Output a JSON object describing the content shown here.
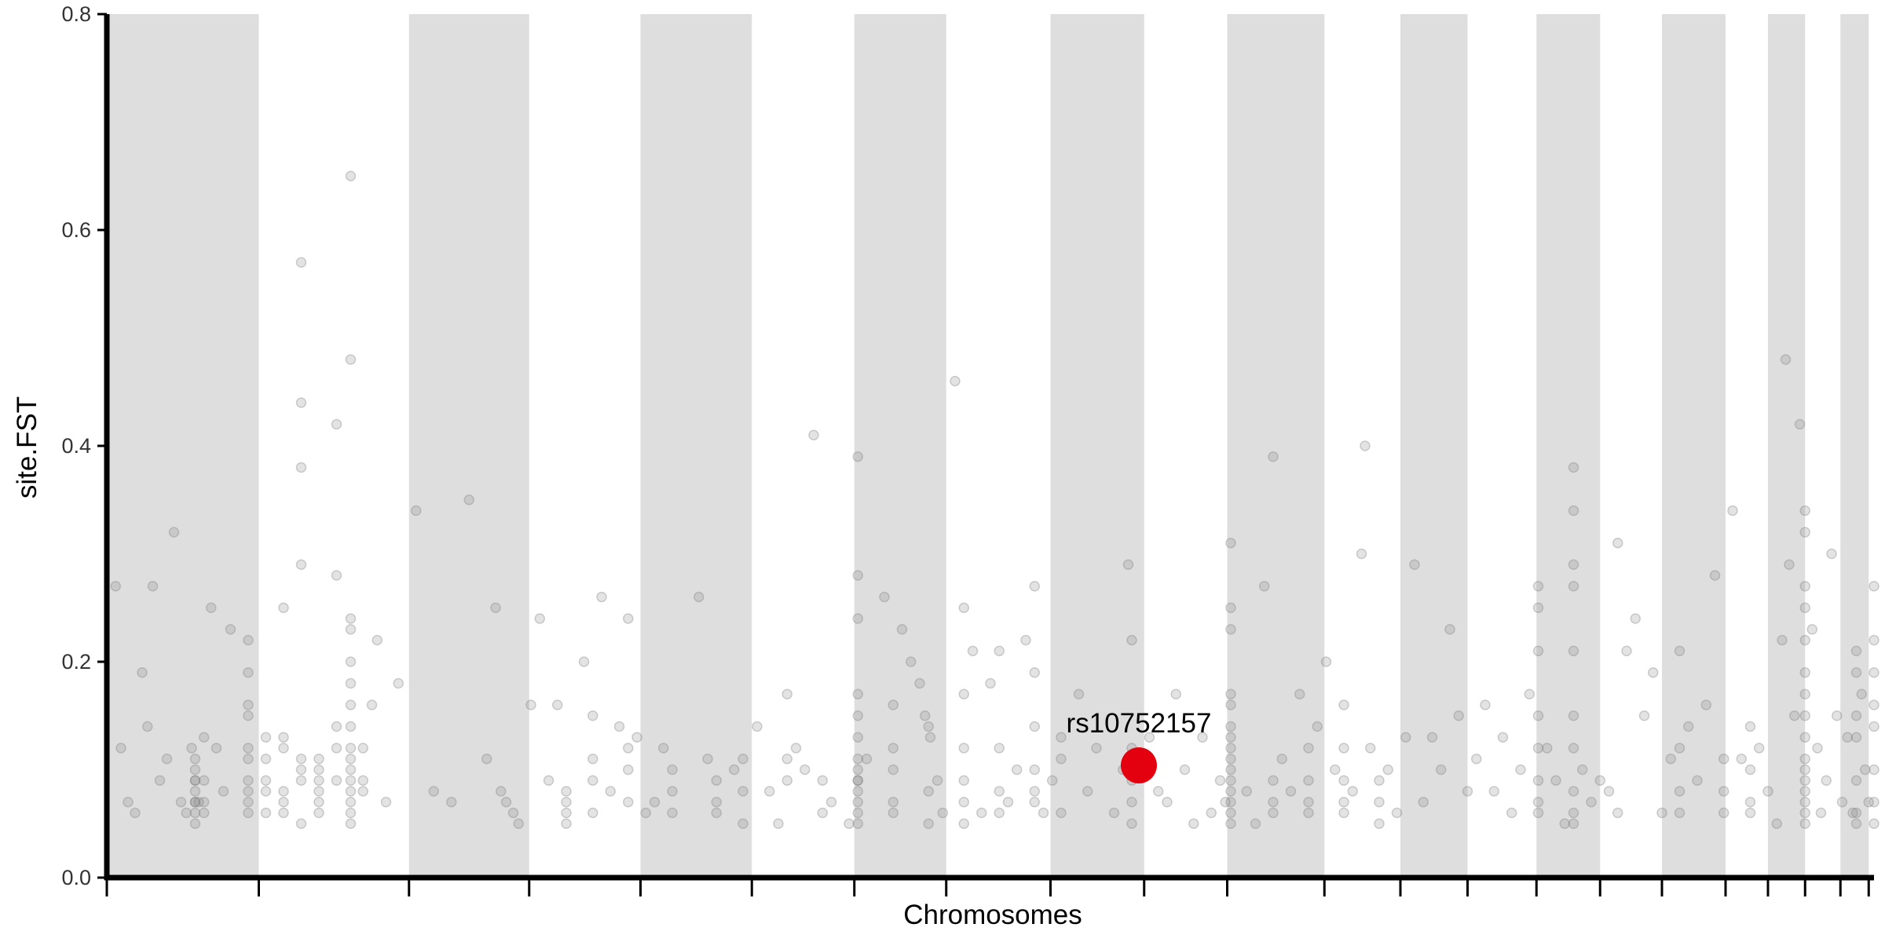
{
  "chart_data": {
    "type": "scatter",
    "xlabel": "Chromosomes",
    "ylabel": "site.FST",
    "ylim": [
      0,
      0.8
    ],
    "yticks": [
      "0.0",
      "0.2",
      "0.4",
      "0.6",
      "0.8"
    ],
    "xlim": [
      0,
      100
    ],
    "chromosome_boundaries": [
      0,
      8.6,
      17.1,
      23.9,
      30.2,
      36.5,
      42.3,
      47.5,
      53.4,
      58.7,
      63.4,
      68.9,
      73.2,
      77.0,
      80.9,
      84.5,
      88.0,
      91.6,
      94.0,
      96.1,
      98.1,
      99.7
    ],
    "colors": {
      "band": "#dedede",
      "point": "#7f7f7f",
      "highlight": "#e3000f",
      "axis": "#000000"
    },
    "highlight": {
      "label": "rs10752157",
      "x": 58.4,
      "y": 0.104
    },
    "points": [
      [
        0.5,
        0.27
      ],
      [
        0.8,
        0.12
      ],
      [
        1.2,
        0.07
      ],
      [
        1.6,
        0.06
      ],
      [
        2.0,
        0.19
      ],
      [
        2.3,
        0.14
      ],
      [
        2.6,
        0.27
      ],
      [
        3.0,
        0.09
      ],
      [
        3.4,
        0.11
      ],
      [
        3.8,
        0.32
      ],
      [
        4.2,
        0.07
      ],
      [
        4.5,
        0.06
      ],
      [
        4.8,
        0.12
      ],
      [
        5.0,
        0.09
      ],
      [
        5.2,
        0.07
      ],
      [
        5.5,
        0.06
      ],
      [
        5.9,
        0.25
      ],
      [
        6.2,
        0.12
      ],
      [
        6.6,
        0.08
      ],
      [
        7.0,
        0.23
      ],
      [
        5.0,
        0.11
      ],
      [
        5.0,
        0.08
      ],
      [
        5.0,
        0.06
      ],
      [
        5.0,
        0.07
      ],
      [
        5.0,
        0.09
      ],
      [
        5.0,
        0.05
      ],
      [
        5.0,
        0.1
      ],
      [
        5.0,
        0.07
      ],
      [
        5.5,
        0.13
      ],
      [
        5.5,
        0.07
      ],
      [
        5.5,
        0.09
      ],
      [
        8.0,
        0.09
      ],
      [
        8.0,
        0.07
      ],
      [
        8.0,
        0.06
      ],
      [
        8.0,
        0.12
      ],
      [
        8.0,
        0.15
      ],
      [
        8.0,
        0.19
      ],
      [
        8.0,
        0.22
      ],
      [
        8.0,
        0.11
      ],
      [
        8.0,
        0.08
      ],
      [
        8.0,
        0.16
      ],
      [
        9.0,
        0.06
      ],
      [
        9.0,
        0.09
      ],
      [
        9.0,
        0.13
      ],
      [
        9.0,
        0.11
      ],
      [
        9.0,
        0.08
      ],
      [
        10.0,
        0.25
      ],
      [
        10.0,
        0.13
      ],
      [
        10.0,
        0.12
      ],
      [
        10.0,
        0.08
      ],
      [
        10.0,
        0.07
      ],
      [
        10.0,
        0.06
      ],
      [
        11.0,
        0.1
      ],
      [
        11.0,
        0.09
      ],
      [
        11.0,
        0.11
      ],
      [
        11.0,
        0.44
      ],
      [
        11.0,
        0.38
      ],
      [
        11.0,
        0.29
      ],
      [
        11.0,
        0.05
      ],
      [
        11.0,
        0.57
      ],
      [
        12.0,
        0.1
      ],
      [
        12.0,
        0.07
      ],
      [
        12.0,
        0.09
      ],
      [
        12.0,
        0.06
      ],
      [
        12.0,
        0.11
      ],
      [
        12.0,
        0.08
      ],
      [
        13.0,
        0.12
      ],
      [
        13.0,
        0.42
      ],
      [
        13.0,
        0.28
      ],
      [
        13.0,
        0.14
      ],
      [
        13.0,
        0.09
      ],
      [
        13.8,
        0.65
      ],
      [
        13.8,
        0.48
      ],
      [
        13.8,
        0.24
      ],
      [
        13.8,
        0.23
      ],
      [
        13.8,
        0.2
      ],
      [
        13.8,
        0.18
      ],
      [
        13.8,
        0.16
      ],
      [
        13.8,
        0.14
      ],
      [
        13.8,
        0.12
      ],
      [
        13.8,
        0.1
      ],
      [
        13.8,
        0.09
      ],
      [
        13.8,
        0.08
      ],
      [
        13.8,
        0.07
      ],
      [
        13.8,
        0.06
      ],
      [
        13.8,
        0.11
      ],
      [
        13.8,
        0.05
      ],
      [
        14.5,
        0.09
      ],
      [
        14.5,
        0.12
      ],
      [
        14.5,
        0.08
      ],
      [
        15.0,
        0.16
      ],
      [
        15.3,
        0.22
      ],
      [
        15.8,
        0.07
      ],
      [
        16.5,
        0.18
      ],
      [
        17.5,
        0.34
      ],
      [
        18.5,
        0.08
      ],
      [
        19.5,
        0.07
      ],
      [
        20.5,
        0.35
      ],
      [
        21.5,
        0.11
      ],
      [
        22.0,
        0.25
      ],
      [
        22.3,
        0.08
      ],
      [
        22.6,
        0.07
      ],
      [
        23.0,
        0.06
      ],
      [
        23.3,
        0.05
      ],
      [
        24.0,
        0.16
      ],
      [
        24.5,
        0.24
      ],
      [
        25.0,
        0.09
      ],
      [
        25.5,
        0.16
      ],
      [
        26.0,
        0.06
      ],
      [
        27.0,
        0.2
      ],
      [
        27.5,
        0.15
      ],
      [
        28.0,
        0.26
      ],
      [
        28.5,
        0.08
      ],
      [
        29.0,
        0.14
      ],
      [
        29.5,
        0.24
      ],
      [
        30.0,
        0.13
      ],
      [
        30.5,
        0.06
      ],
      [
        31.0,
        0.07
      ],
      [
        31.5,
        0.12
      ],
      [
        32.0,
        0.06
      ],
      [
        33.5,
        0.26
      ],
      [
        34.0,
        0.11
      ],
      [
        34.5,
        0.06
      ],
      [
        35.5,
        0.1
      ],
      [
        36.0,
        0.05
      ],
      [
        36.8,
        0.14
      ],
      [
        37.5,
        0.08
      ],
      [
        38.0,
        0.05
      ],
      [
        38.5,
        0.17
      ],
      [
        39.0,
        0.12
      ],
      [
        39.5,
        0.1
      ],
      [
        40.0,
        0.41
      ],
      [
        41.0,
        0.07
      ],
      [
        42.0,
        0.05
      ],
      [
        42.5,
        0.09
      ],
      [
        43.0,
        0.11
      ],
      [
        44.0,
        0.26
      ],
      [
        44.5,
        0.16
      ],
      [
        45.0,
        0.23
      ],
      [
        45.5,
        0.2
      ],
      [
        46.0,
        0.18
      ],
      [
        46.3,
        0.15
      ],
      [
        46.6,
        0.13
      ],
      [
        47.0,
        0.09
      ],
      [
        47.3,
        0.06
      ],
      [
        26.0,
        0.07
      ],
      [
        26.0,
        0.05
      ],
      [
        26.0,
        0.08
      ],
      [
        27.5,
        0.09
      ],
      [
        27.5,
        0.11
      ],
      [
        27.5,
        0.06
      ],
      [
        29.5,
        0.1
      ],
      [
        29.5,
        0.07
      ],
      [
        29.5,
        0.12
      ],
      [
        32.0,
        0.08
      ],
      [
        32.0,
        0.1
      ],
      [
        34.5,
        0.07
      ],
      [
        34.5,
        0.09
      ],
      [
        36.0,
        0.11
      ],
      [
        36.0,
        0.08
      ],
      [
        38.5,
        0.09
      ],
      [
        38.5,
        0.11
      ],
      [
        40.5,
        0.06
      ],
      [
        40.5,
        0.09
      ],
      [
        42.5,
        0.06
      ],
      [
        42.5,
        0.07
      ],
      [
        42.5,
        0.08
      ],
      [
        42.5,
        0.1
      ],
      [
        42.5,
        0.13
      ],
      [
        42.5,
        0.15
      ],
      [
        42.5,
        0.17
      ],
      [
        42.5,
        0.28
      ],
      [
        42.5,
        0.24
      ],
      [
        42.5,
        0.39
      ],
      [
        42.5,
        0.05
      ],
      [
        42.5,
        0.11
      ],
      [
        42.5,
        0.09
      ],
      [
        44.5,
        0.07
      ],
      [
        44.5,
        0.1
      ],
      [
        44.5,
        0.12
      ],
      [
        44.5,
        0.06
      ],
      [
        46.5,
        0.05
      ],
      [
        46.5,
        0.08
      ],
      [
        46.5,
        0.14
      ],
      [
        48.0,
        0.46
      ],
      [
        48.5,
        0.09
      ],
      [
        49.0,
        0.21
      ],
      [
        49.5,
        0.06
      ],
      [
        50.0,
        0.18
      ],
      [
        50.5,
        0.12
      ],
      [
        51.0,
        0.07
      ],
      [
        51.5,
        0.1
      ],
      [
        52.0,
        0.22
      ],
      [
        52.5,
        0.08
      ],
      [
        53.0,
        0.06
      ],
      [
        53.5,
        0.09
      ],
      [
        54.0,
        0.11
      ],
      [
        48.5,
        0.05
      ],
      [
        48.5,
        0.07
      ],
      [
        48.5,
        0.12
      ],
      [
        48.5,
        0.17
      ],
      [
        48.5,
        0.25
      ],
      [
        50.5,
        0.06
      ],
      [
        50.5,
        0.08
      ],
      [
        50.5,
        0.21
      ],
      [
        52.5,
        0.07
      ],
      [
        52.5,
        0.1
      ],
      [
        52.5,
        0.14
      ],
      [
        52.5,
        0.19
      ],
      [
        52.5,
        0.27
      ],
      [
        54.0,
        0.06
      ],
      [
        54.0,
        0.13
      ],
      [
        55.0,
        0.17
      ],
      [
        55.5,
        0.08
      ],
      [
        56.0,
        0.12
      ],
      [
        57.0,
        0.06
      ],
      [
        57.5,
        0.1
      ],
      [
        57.8,
        0.29
      ],
      [
        58.0,
        0.22
      ],
      [
        58.0,
        0.09
      ],
      [
        58.0,
        0.07
      ],
      [
        58.0,
        0.05
      ],
      [
        58.0,
        0.12
      ],
      [
        59.0,
        0.13
      ],
      [
        59.5,
        0.08
      ],
      [
        60.0,
        0.07
      ],
      [
        60.5,
        0.17
      ],
      [
        61.0,
        0.1
      ],
      [
        61.5,
        0.05
      ],
      [
        62.0,
        0.13
      ],
      [
        62.5,
        0.06
      ],
      [
        63.0,
        0.09
      ],
      [
        63.3,
        0.07
      ],
      [
        63.6,
        0.31
      ],
      [
        63.6,
        0.25
      ],
      [
        63.6,
        0.17
      ],
      [
        63.6,
        0.14
      ],
      [
        63.6,
        0.12
      ],
      [
        63.6,
        0.1
      ],
      [
        63.6,
        0.09
      ],
      [
        63.6,
        0.08
      ],
      [
        63.6,
        0.07
      ],
      [
        63.6,
        0.06
      ],
      [
        63.6,
        0.05
      ],
      [
        63.6,
        0.11
      ],
      [
        63.6,
        0.13
      ],
      [
        63.6,
        0.16
      ],
      [
        63.6,
        0.23
      ],
      [
        64.5,
        0.08
      ],
      [
        65.0,
        0.05
      ],
      [
        65.5,
        0.27
      ],
      [
        66.0,
        0.39
      ],
      [
        66.5,
        0.11
      ],
      [
        67.0,
        0.08
      ],
      [
        67.5,
        0.17
      ],
      [
        68.0,
        0.06
      ],
      [
        68.5,
        0.14
      ],
      [
        69.0,
        0.2
      ],
      [
        69.5,
        0.1
      ],
      [
        70.0,
        0.16
      ],
      [
        70.5,
        0.08
      ],
      [
        71.0,
        0.3
      ],
      [
        71.2,
        0.4
      ],
      [
        71.5,
        0.12
      ],
      [
        72.0,
        0.07
      ],
      [
        72.5,
        0.1
      ],
      [
        73.0,
        0.06
      ],
      [
        73.5,
        0.13
      ],
      [
        66.0,
        0.07
      ],
      [
        66.0,
        0.09
      ],
      [
        66.0,
        0.06
      ],
      [
        68.0,
        0.09
      ],
      [
        68.0,
        0.07
      ],
      [
        68.0,
        0.12
      ],
      [
        70.0,
        0.07
      ],
      [
        70.0,
        0.06
      ],
      [
        70.0,
        0.09
      ],
      [
        70.0,
        0.12
      ],
      [
        72.0,
        0.09
      ],
      [
        72.0,
        0.05
      ],
      [
        74.0,
        0.29
      ],
      [
        74.5,
        0.07
      ],
      [
        75.0,
        0.13
      ],
      [
        75.5,
        0.1
      ],
      [
        76.0,
        0.23
      ],
      [
        76.5,
        0.15
      ],
      [
        77.0,
        0.08
      ],
      [
        77.5,
        0.11
      ],
      [
        78.0,
        0.16
      ],
      [
        78.5,
        0.08
      ],
      [
        79.0,
        0.13
      ],
      [
        79.5,
        0.06
      ],
      [
        80.0,
        0.1
      ],
      [
        80.5,
        0.17
      ],
      [
        81.0,
        0.07
      ],
      [
        81.5,
        0.12
      ],
      [
        82.0,
        0.09
      ],
      [
        82.5,
        0.05
      ],
      [
        83.0,
        0.15
      ],
      [
        83.5,
        0.1
      ],
      [
        84.0,
        0.07
      ],
      [
        84.5,
        0.09
      ],
      [
        85.0,
        0.08
      ],
      [
        85.5,
        0.06
      ],
      [
        81.0,
        0.27
      ],
      [
        81.0,
        0.25
      ],
      [
        81.0,
        0.21
      ],
      [
        81.0,
        0.15
      ],
      [
        81.0,
        0.09
      ],
      [
        81.0,
        0.06
      ],
      [
        81.0,
        0.12
      ],
      [
        83.0,
        0.38
      ],
      [
        83.0,
        0.34
      ],
      [
        83.0,
        0.29
      ],
      [
        83.0,
        0.27
      ],
      [
        83.0,
        0.21
      ],
      [
        83.0,
        0.12
      ],
      [
        83.0,
        0.08
      ],
      [
        83.0,
        0.06
      ],
      [
        83.0,
        0.05
      ],
      [
        85.5,
        0.31
      ],
      [
        86.0,
        0.21
      ],
      [
        86.5,
        0.24
      ],
      [
        87.0,
        0.15
      ],
      [
        87.5,
        0.19
      ],
      [
        88.0,
        0.06
      ],
      [
        88.5,
        0.11
      ],
      [
        89.0,
        0.21
      ],
      [
        89.5,
        0.14
      ],
      [
        90.0,
        0.09
      ],
      [
        90.5,
        0.16
      ],
      [
        91.0,
        0.28
      ],
      [
        91.5,
        0.08
      ],
      [
        92.0,
        0.34
      ],
      [
        92.5,
        0.11
      ],
      [
        93.0,
        0.07
      ],
      [
        93.5,
        0.12
      ],
      [
        94.0,
        0.08
      ],
      [
        94.5,
        0.05
      ],
      [
        89.0,
        0.06
      ],
      [
        89.0,
        0.08
      ],
      [
        89.0,
        0.12
      ],
      [
        91.5,
        0.06
      ],
      [
        91.5,
        0.11
      ],
      [
        93.0,
        0.06
      ],
      [
        93.0,
        0.1
      ],
      [
        93.0,
        0.14
      ],
      [
        94.8,
        0.22
      ],
      [
        95.0,
        0.48
      ],
      [
        95.2,
        0.29
      ],
      [
        95.5,
        0.15
      ],
      [
        95.8,
        0.42
      ],
      [
        96.1,
        0.34
      ],
      [
        96.1,
        0.32
      ],
      [
        96.1,
        0.27
      ],
      [
        96.1,
        0.25
      ],
      [
        96.1,
        0.22
      ],
      [
        96.1,
        0.19
      ],
      [
        96.1,
        0.17
      ],
      [
        96.1,
        0.15
      ],
      [
        96.1,
        0.13
      ],
      [
        96.1,
        0.11
      ],
      [
        96.1,
        0.1
      ],
      [
        96.1,
        0.09
      ],
      [
        96.1,
        0.08
      ],
      [
        96.1,
        0.07
      ],
      [
        96.1,
        0.06
      ],
      [
        96.1,
        0.05
      ],
      [
        96.5,
        0.23
      ],
      [
        96.8,
        0.12
      ],
      [
        97.0,
        0.06
      ],
      [
        97.3,
        0.09
      ],
      [
        97.6,
        0.3
      ],
      [
        97.9,
        0.15
      ],
      [
        98.2,
        0.07
      ],
      [
        98.5,
        0.13
      ],
      [
        98.8,
        0.06
      ],
      [
        99.0,
        0.21
      ],
      [
        99.3,
        0.17
      ],
      [
        99.5,
        0.1
      ],
      [
        99.7,
        0.07
      ],
      [
        99.0,
        0.09
      ],
      [
        99.0,
        0.06
      ],
      [
        99.0,
        0.13
      ],
      [
        99.0,
        0.15
      ],
      [
        99.0,
        0.05
      ],
      [
        99.0,
        0.19
      ],
      [
        100.0,
        0.27
      ],
      [
        100.0,
        0.22
      ],
      [
        100.0,
        0.19
      ],
      [
        100.0,
        0.14
      ],
      [
        100.0,
        0.1
      ],
      [
        100.0,
        0.07
      ],
      [
        100.0,
        0.05
      ],
      [
        100.0,
        0.16
      ]
    ]
  }
}
